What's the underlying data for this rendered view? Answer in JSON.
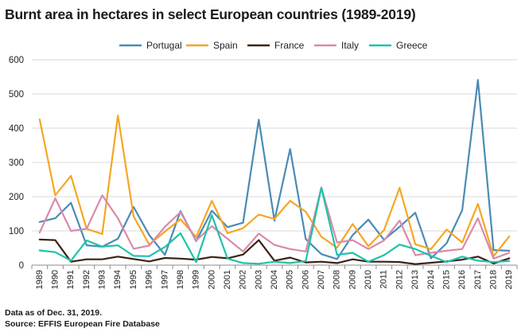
{
  "chart_data": {
    "type": "line",
    "title": "Burnt area in hectares in select European countries (1989-2019)",
    "xlabel": "",
    "ylabel": "",
    "ylim": [
      0,
      600
    ],
    "yticks": [
      0,
      100,
      200,
      300,
      400,
      500,
      600
    ],
    "grid": true,
    "legend_position": "top",
    "categories": [
      "1989",
      "1990",
      "1991",
      "1992",
      "1993",
      "1994",
      "1995",
      "1996",
      "1997",
      "1998",
      "1999",
      "2000",
      "2001",
      "2002",
      "2003",
      "2004",
      "2005",
      "2006",
      "2007",
      "2008",
      "2009",
      "2010",
      "2011",
      "2012",
      "2013",
      "2014",
      "2015",
      "2016",
      "2017",
      "2018",
      "2019"
    ],
    "series": [
      {
        "name": "Portugal",
        "color": "#4a8bb5",
        "values": [
          126,
          137,
          182,
          58,
          54,
          77,
          170,
          88,
          30,
          158,
          70,
          159,
          111,
          124,
          425,
          130,
          339,
          76,
          32,
          18,
          88,
          133,
          74,
          112,
          153,
          20,
          64,
          161,
          541,
          44,
          42
        ]
      },
      {
        "name": "Spain",
        "color": "#f6a623",
        "values": [
          426,
          204,
          261,
          106,
          91,
          437,
          143,
          60,
          98,
          134,
          82,
          188,
          93,
          108,
          148,
          135,
          188,
          156,
          83,
          51,
          120,
          55,
          102,
          226,
          61,
          47,
          104,
          66,
          179,
          26,
          84
        ]
      },
      {
        "name": "France",
        "color": "#3b2314",
        "values": [
          75,
          73,
          10,
          17,
          17,
          25,
          18,
          11,
          21,
          19,
          16,
          24,
          20,
          31,
          73,
          13,
          22,
          8,
          10,
          6,
          17,
          10,
          10,
          9,
          3,
          7,
          11,
          16,
          25,
          5,
          20
        ]
      },
      {
        "name": "Italy",
        "color": "#d98aab",
        "values": [
          95,
          195,
          100,
          106,
          204,
          137,
          48,
          57,
          112,
          155,
          72,
          114,
          77,
          40,
          92,
          59,
          47,
          40,
          227,
          66,
          73,
          47,
          72,
          130,
          29,
          36,
          42,
          47,
          137,
          19,
          36
        ]
      },
      {
        "name": "Greece",
        "color": "#1ec3a8",
        "values": [
          43,
          38,
          13,
          72,
          54,
          58,
          27,
          26,
          53,
          93,
          9,
          146,
          19,
          6,
          4,
          10,
          6,
          12,
          226,
          30,
          36,
          10,
          29,
          60,
          47,
          27,
          9,
          25,
          13,
          9,
          12
        ]
      }
    ]
  },
  "notes": {
    "line1": "Data as of Dec. 31, 2019.",
    "line2": "Source: EFFIS European Fire Database"
  }
}
